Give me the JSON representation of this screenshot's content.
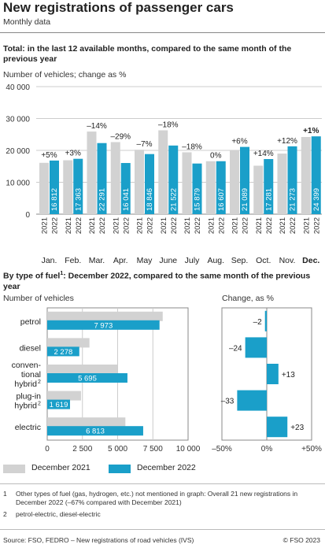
{
  "title": "New registrations of passenger cars",
  "subtitle": "Monthly data",
  "section1": {
    "heading": "Total: in the last 12 available months, compared to the same month of the previous year",
    "unit_label": "Number of vehicles; change as %"
  },
  "section2": {
    "heading_pre": "By type of fuel",
    "heading_sup": "1",
    "heading_post": ": December 2022, compared to the same month of the previous year",
    "left_unit": "Number of vehicles",
    "right_unit": "Change, as %"
  },
  "legend": {
    "item_2021": "December 2021",
    "item_2022": "December 2022"
  },
  "footnotes": {
    "n1_mark": "1",
    "n1_text": "Other types of fuel (gas, hydrogen, etc.) not mentioned in graph: Overall 21 new registrations in December 2022 (–67% compared with December 2021)",
    "n2_mark": "2",
    "n2_text": "petrol-electric, diesel-electric"
  },
  "source": "Source: FSO, FEDRO – New registrations of road vehicles (IVS)",
  "copyright": "© FSO 2023",
  "colors": {
    "c2021": "#d2d2d2",
    "c2022": "#1a9fc9",
    "grid": "#cccccc",
    "axis": "#888888"
  },
  "chart_data": [
    {
      "type": "bar",
      "ylim": [
        0,
        40000
      ],
      "yticks": [
        "0",
        "10 000",
        "20 000",
        "30 000",
        "40 000"
      ],
      "ytick_values": [
        0,
        10000,
        20000,
        30000,
        40000
      ],
      "categories": [
        "Jan.",
        "Feb.",
        "Mar.",
        "Apr.",
        "May",
        "June",
        "July",
        "Aug.",
        "Sep.",
        "Oct.",
        "Nov.",
        "Dec."
      ],
      "year_labels": [
        "2021",
        "2022"
      ],
      "highlight_category": "Dec.",
      "series": [
        {
          "name": "2021",
          "values": [
            16100,
            16900,
            25900,
            22600,
            20200,
            26300,
            19400,
            16600,
            19900,
            15200,
            19000,
            24200
          ]
        },
        {
          "name": "2022",
          "values": [
            16812,
            17363,
            22291,
            16041,
            18846,
            21522,
            15879,
            16607,
            21089,
            17281,
            21273,
            24399
          ]
        }
      ],
      "value_labels_2022": [
        "16 812",
        "17 363",
        "22 291",
        "16 041",
        "18 846",
        "21 522",
        "15 879",
        "16 607",
        "21 089",
        "17 281",
        "21 273",
        "24 399"
      ],
      "change_labels": [
        "+5%",
        "+3%",
        "–14%",
        "–29%",
        "–7%",
        "–18%",
        "–18%",
        "0%",
        "+6%",
        "+14%",
        "+12%",
        "+1%"
      ]
    },
    {
      "type": "bar",
      "orientation": "horizontal",
      "categories": [
        "petrol",
        "diesel",
        "conventional hybrid",
        "plug-in hybrid",
        "electric"
      ],
      "category_lines": [
        [
          "petrol"
        ],
        [
          "diesel"
        ],
        [
          "conven-",
          "tional",
          "hybrid"
        ],
        [
          "plug-in",
          "hybrid"
        ],
        [
          "electric"
        ]
      ],
      "category_sup": [
        "",
        "",
        "2",
        "2",
        ""
      ],
      "xlim": [
        0,
        10000
      ],
      "xticks": [
        "0",
        "2 500",
        "5 000",
        "7 500",
        "10 000"
      ],
      "xtick_values": [
        0,
        2500,
        5000,
        7500,
        10000
      ],
      "series": [
        {
          "name": "December 2021",
          "values": [
            8200,
            3000,
            5000,
            2400,
            5550
          ]
        },
        {
          "name": "December 2022",
          "values": [
            7973,
            2278,
            5695,
            1619,
            6813
          ]
        }
      ],
      "value_labels_2022": [
        "7 973",
        "2 278",
        "5 695",
        "1 619",
        "6 813"
      ]
    },
    {
      "type": "bar",
      "orientation": "horizontal",
      "categories": [
        "petrol",
        "diesel",
        "conventional hybrid",
        "plug-in hybrid",
        "electric"
      ],
      "xlim": [
        -50,
        50
      ],
      "xticks": [
        "–50%",
        "0%",
        "+50%"
      ],
      "xtick_values": [
        -50,
        0,
        50
      ],
      "values": [
        -2,
        -24,
        13,
        -33,
        23
      ],
      "value_labels": [
        "–2",
        "–24",
        "+13",
        "–33",
        "+23"
      ]
    }
  ]
}
